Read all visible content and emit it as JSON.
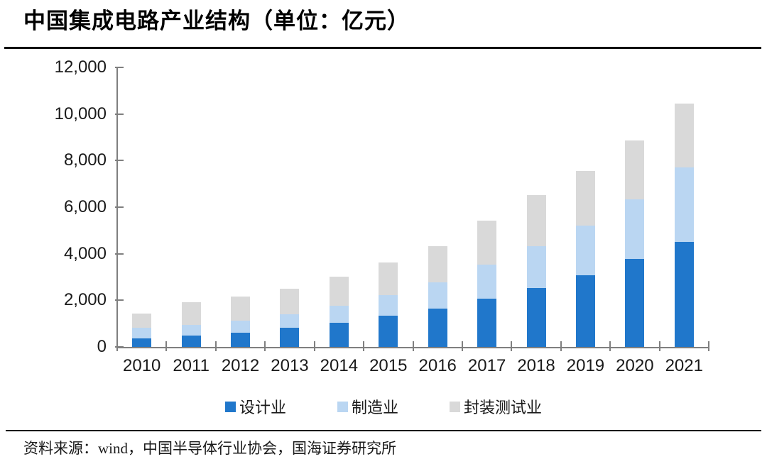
{
  "title": "中国集成电路产业结构（单位：亿元）",
  "footer": {
    "source_text": "资料来源：wind，中国半导体行业协会，国海证券研究所"
  },
  "colors": {
    "design_blue": "#2077CB",
    "manufacturing_light_blue": "#BAD6F2",
    "packaging_gray": "#D9D9D9",
    "axis_gray": "#7f7f7f"
  },
  "chart_data": {
    "type": "bar",
    "stacked": true,
    "title": "中国集成电路产业结构（单位：亿元）",
    "xlabel": "",
    "ylabel": "",
    "grid": false,
    "legend_position": "bottom",
    "ylim": [
      0,
      12000
    ],
    "ytick_interval": 2000,
    "yticks": [
      {
        "value": 0,
        "label": "0"
      },
      {
        "value": 2000,
        "label": "2,000"
      },
      {
        "value": 4000,
        "label": "4,000"
      },
      {
        "value": 6000,
        "label": "6,000"
      },
      {
        "value": 8000,
        "label": "8,000"
      },
      {
        "value": 10000,
        "label": "10,000"
      },
      {
        "value": 12000,
        "label": "12,000"
      }
    ],
    "categories": [
      "2010",
      "2011",
      "2012",
      "2013",
      "2014",
      "2015",
      "2016",
      "2017",
      "2018",
      "2019",
      "2020",
      "2021"
    ],
    "series": [
      {
        "name": "设计业",
        "color": "#2077CB",
        "values": [
          363.9,
          473.7,
          621.7,
          808.8,
          1047.4,
          1325.0,
          1644.3,
          2073.5,
          2519.3,
          3063.5,
          3778.4,
          4519.0
        ]
      },
      {
        "name": "制造业",
        "color": "#BAD6F2",
        "values": [
          447.1,
          473.1,
          501.1,
          600.9,
          712.1,
          900.8,
          1126.9,
          1448.1,
          1818.2,
          2149.1,
          2560.1,
          3176.3
        ]
      },
      {
        "name": "封装测试业",
        "color": "#D9D9D9",
        "values": [
          629.2,
          986.9,
          1035.7,
          1098.8,
          1255.9,
          1384.0,
          1564.3,
          1889.7,
          2193.9,
          2349.7,
          2509.5,
          2763.0
        ]
      }
    ]
  }
}
